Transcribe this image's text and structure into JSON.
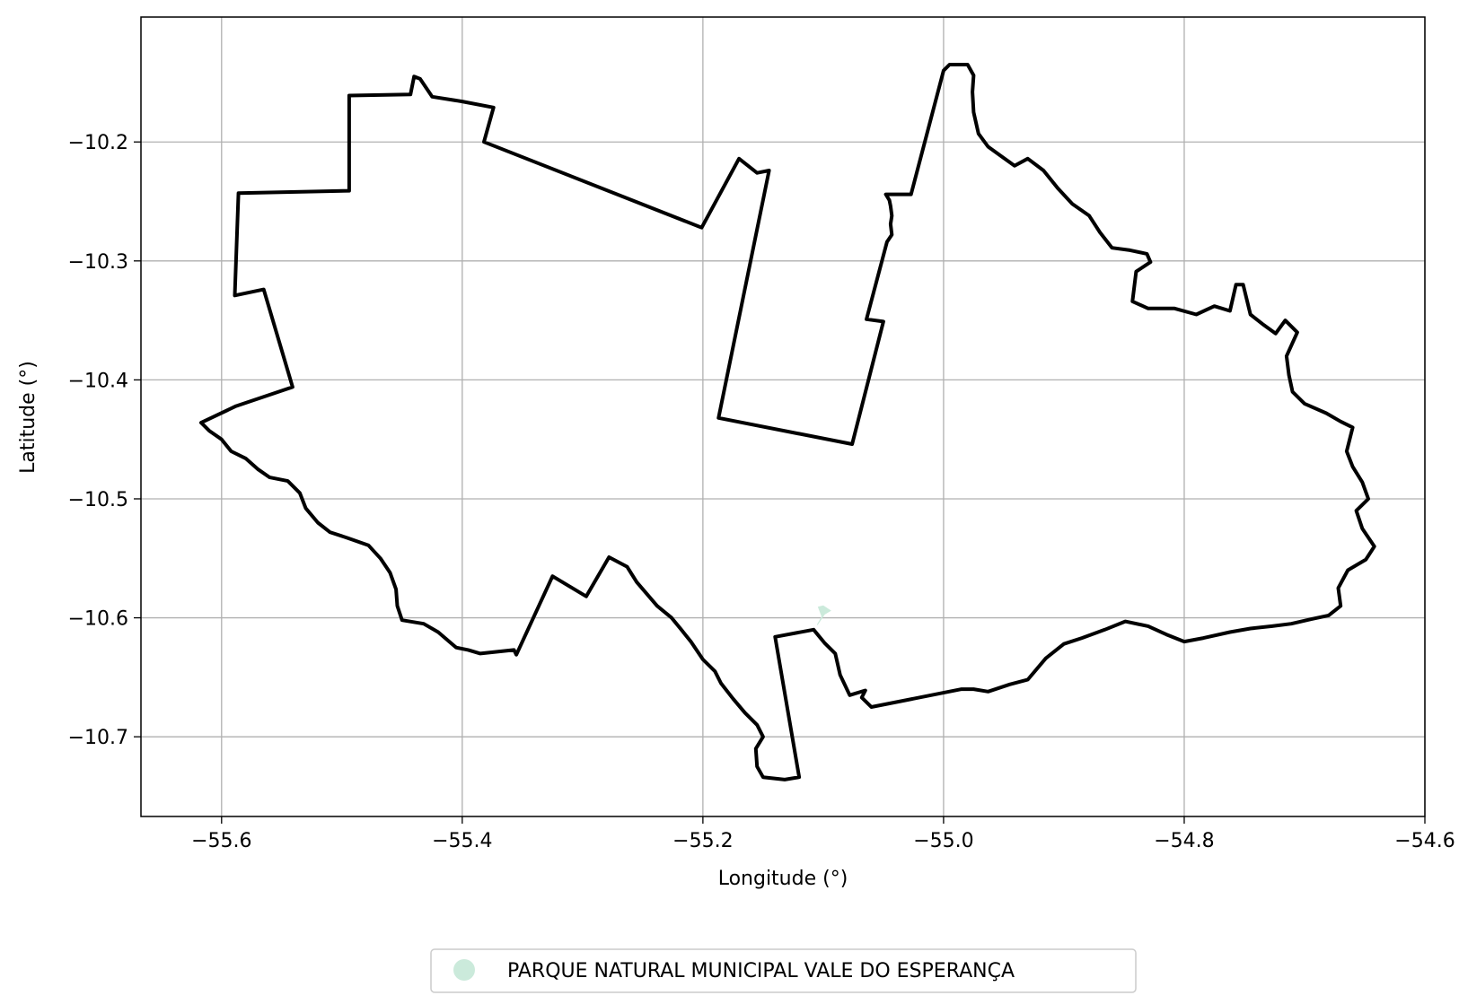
{
  "chart_data": {
    "type": "map",
    "xlabel": "Longitude (°)",
    "ylabel": "Latitude (°)",
    "xlim": [
      -55.667,
      -54.6
    ],
    "ylim": [
      -10.767,
      -10.095
    ],
    "x_ticks": [
      -55.6,
      -55.4,
      -55.2,
      -55.0,
      -54.8,
      -54.6
    ],
    "x_tick_labels": [
      "−55.6",
      "−55.4",
      "−55.2",
      "−55.0",
      "−54.8",
      "−54.6"
    ],
    "y_ticks": [
      -10.2,
      -10.3,
      -10.4,
      -10.5,
      -10.6,
      -10.7
    ],
    "y_tick_labels": [
      "−10.2",
      "−10.3",
      "−10.4",
      "−10.5",
      "−10.6",
      "−10.7"
    ],
    "grid": true,
    "legend_position": "bottom-center",
    "colors": {
      "boundary": "#000000",
      "park": "#cbeadb",
      "grid": "#b0b0b0",
      "legend_border": "#cccccc"
    },
    "legend": [
      {
        "label": "PARQUE NATURAL MUNICIPAL VALE DO ESPERANÇA",
        "color": "#cbeadb"
      }
    ],
    "boundary": [
      [
        -55.617,
        -10.436
      ],
      [
        -55.588,
        -10.422
      ],
      [
        -55.541,
        -10.406
      ],
      [
        -55.565,
        -10.324
      ],
      [
        -55.589,
        -10.329
      ],
      [
        -55.586,
        -10.243
      ],
      [
        -55.494,
        -10.241
      ],
      [
        -55.494,
        -10.161
      ],
      [
        -55.443,
        -10.16
      ],
      [
        -55.44,
        -10.145
      ],
      [
        -55.435,
        -10.147
      ],
      [
        -55.425,
        -10.162
      ],
      [
        -55.4,
        -10.166
      ],
      [
        -55.374,
        -10.171
      ],
      [
        -55.382,
        -10.2
      ],
      [
        -55.201,
        -10.272
      ],
      [
        -55.17,
        -10.214
      ],
      [
        -55.155,
        -10.226
      ],
      [
        -55.145,
        -10.224
      ],
      [
        -55.187,
        -10.432
      ],
      [
        -55.076,
        -10.454
      ],
      [
        -55.05,
        -10.351
      ],
      [
        -55.064,
        -10.349
      ],
      [
        -55.047,
        -10.284
      ],
      [
        -55.043,
        -10.278
      ],
      [
        -55.044,
        -10.269
      ],
      [
        -55.043,
        -10.262
      ],
      [
        -55.044,
        -10.254
      ],
      [
        -55.045,
        -10.249
      ],
      [
        -55.048,
        -10.244
      ],
      [
        -55.027,
        -10.244
      ],
      [
        -55.0,
        -10.14
      ],
      [
        -54.995,
        -10.135
      ],
      [
        -54.98,
        -10.135
      ],
      [
        -54.975,
        -10.144
      ],
      [
        -54.976,
        -10.158
      ],
      [
        -54.975,
        -10.175
      ],
      [
        -54.971,
        -10.193
      ],
      [
        -54.963,
        -10.204
      ],
      [
        -54.952,
        -10.212
      ],
      [
        -54.941,
        -10.22
      ],
      [
        -54.93,
        -10.214
      ],
      [
        -54.917,
        -10.224
      ],
      [
        -54.905,
        -10.239
      ],
      [
        -54.893,
        -10.252
      ],
      [
        -54.879,
        -10.262
      ],
      [
        -54.87,
        -10.276
      ],
      [
        -54.86,
        -10.289
      ],
      [
        -54.845,
        -10.291
      ],
      [
        -54.831,
        -10.294
      ],
      [
        -54.828,
        -10.301
      ],
      [
        -54.84,
        -10.309
      ],
      [
        -54.843,
        -10.334
      ],
      [
        -54.83,
        -10.34
      ],
      [
        -54.808,
        -10.34
      ],
      [
        -54.79,
        -10.345
      ],
      [
        -54.775,
        -10.338
      ],
      [
        -54.762,
        -10.342
      ],
      [
        -54.757,
        -10.32
      ],
      [
        -54.751,
        -10.32
      ],
      [
        -54.745,
        -10.345
      ],
      [
        -54.735,
        -10.353
      ],
      [
        -54.724,
        -10.361
      ],
      [
        -54.716,
        -10.35
      ],
      [
        -54.706,
        -10.36
      ],
      [
        -54.715,
        -10.38
      ],
      [
        -54.713,
        -10.396
      ],
      [
        -54.71,
        -10.41
      ],
      [
        -54.7,
        -10.42
      ],
      [
        -54.682,
        -10.428
      ],
      [
        -54.67,
        -10.435
      ],
      [
        -54.66,
        -10.44
      ],
      [
        -54.665,
        -10.46
      ],
      [
        -54.66,
        -10.473
      ],
      [
        -54.652,
        -10.486
      ],
      [
        -54.647,
        -10.5
      ],
      [
        -54.657,
        -10.51
      ],
      [
        -54.652,
        -10.525
      ],
      [
        -54.642,
        -10.54
      ],
      [
        -54.649,
        -10.551
      ],
      [
        -54.664,
        -10.56
      ],
      [
        -54.672,
        -10.575
      ],
      [
        -54.67,
        -10.59
      ],
      [
        -54.68,
        -10.598
      ],
      [
        -54.694,
        -10.601
      ],
      [
        -54.711,
        -10.605
      ],
      [
        -54.727,
        -10.607
      ],
      [
        -54.745,
        -10.609
      ],
      [
        -54.762,
        -10.612
      ],
      [
        -54.784,
        -10.617
      ],
      [
        -54.8,
        -10.62
      ],
      [
        -54.815,
        -10.614
      ],
      [
        -54.83,
        -10.607
      ],
      [
        -54.849,
        -10.603
      ],
      [
        -54.866,
        -10.61
      ],
      [
        -54.885,
        -10.617
      ],
      [
        -54.9,
        -10.622
      ],
      [
        -54.915,
        -10.634
      ],
      [
        -54.93,
        -10.652
      ],
      [
        -54.945,
        -10.656
      ],
      [
        -54.963,
        -10.662
      ],
      [
        -54.975,
        -10.66
      ],
      [
        -54.985,
        -10.66
      ],
      [
        -55.06,
        -10.675
      ],
      [
        -55.068,
        -10.667
      ],
      [
        -55.065,
        -10.661
      ],
      [
        -55.078,
        -10.665
      ],
      [
        -55.086,
        -10.648
      ],
      [
        -55.09,
        -10.63
      ],
      [
        -55.099,
        -10.621
      ],
      [
        -55.108,
        -10.61
      ],
      [
        -55.14,
        -10.616
      ],
      [
        -55.12,
        -10.734
      ],
      [
        -55.132,
        -10.736
      ],
      [
        -55.15,
        -10.734
      ],
      [
        -55.155,
        -10.725
      ],
      [
        -55.156,
        -10.71
      ],
      [
        -55.15,
        -10.7
      ],
      [
        -55.155,
        -10.69
      ],
      [
        -55.165,
        -10.68
      ],
      [
        -55.175,
        -10.668
      ],
      [
        -55.185,
        -10.655
      ],
      [
        -55.19,
        -10.645
      ],
      [
        -55.2,
        -10.635
      ],
      [
        -55.21,
        -10.62
      ],
      [
        -55.218,
        -10.61
      ],
      [
        -55.226,
        -10.6
      ],
      [
        -55.238,
        -10.59
      ],
      [
        -55.255,
        -10.57
      ],
      [
        -55.263,
        -10.557
      ],
      [
        -55.278,
        -10.549
      ],
      [
        -55.297,
        -10.582
      ],
      [
        -55.325,
        -10.565
      ],
      [
        -55.355,
        -10.631
      ],
      [
        -55.357,
        -10.627
      ],
      [
        -55.385,
        -10.63
      ],
      [
        -55.395,
        -10.627
      ],
      [
        -55.405,
        -10.625
      ],
      [
        -55.42,
        -10.612
      ],
      [
        -55.432,
        -10.605
      ],
      [
        -55.45,
        -10.602
      ],
      [
        -55.454,
        -10.59
      ],
      [
        -55.455,
        -10.576
      ],
      [
        -55.46,
        -10.562
      ],
      [
        -55.468,
        -10.55
      ],
      [
        -55.478,
        -10.539
      ],
      [
        -55.495,
        -10.533
      ],
      [
        -55.51,
        -10.528
      ],
      [
        -55.52,
        -10.52
      ],
      [
        -55.53,
        -10.508
      ],
      [
        -55.535,
        -10.495
      ],
      [
        -55.545,
        -10.485
      ],
      [
        -55.56,
        -10.482
      ],
      [
        -55.57,
        -10.475
      ],
      [
        -55.58,
        -10.466
      ],
      [
        -55.592,
        -10.46
      ],
      [
        -55.6,
        -10.45
      ],
      [
        -55.61,
        -10.443
      ],
      [
        -55.617,
        -10.436
      ]
    ],
    "park_polygon": [
      [
        -55.105,
        -10.606
      ],
      [
        -55.099,
        -10.597
      ],
      [
        -55.094,
        -10.594
      ],
      [
        -55.1,
        -10.59
      ],
      [
        -55.104,
        -10.591
      ],
      [
        -55.101,
        -10.599
      ],
      [
        -55.105,
        -10.606
      ]
    ]
  }
}
